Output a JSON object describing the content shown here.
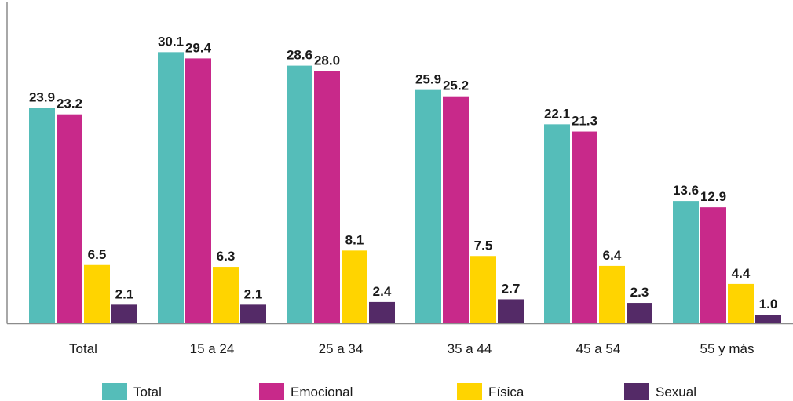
{
  "chart_data": {
    "type": "bar",
    "categories": [
      "Total",
      "15 a 24",
      "25 a 34",
      "35 a 44",
      "45 a 54",
      "55 y más"
    ],
    "series": [
      {
        "name": "Total",
        "color": "#55bdb9",
        "values": [
          23.9,
          30.1,
          28.6,
          25.9,
          22.1,
          13.6
        ]
      },
      {
        "name": "Emocional",
        "color": "#c8298a",
        "values": [
          23.2,
          29.4,
          28.0,
          25.2,
          21.3,
          12.9
        ]
      },
      {
        "name": "Física",
        "color": "#ffd400",
        "values": [
          6.5,
          6.3,
          8.1,
          7.5,
          6.4,
          4.4
        ]
      },
      {
        "name": "Sexual",
        "color": "#542a67",
        "values": [
          2.1,
          2.1,
          2.4,
          2.7,
          2.3,
          1.0
        ]
      }
    ],
    "value_labels": [
      [
        "23.9",
        "30.1",
        "28.6",
        "25.9",
        "22.1",
        "13.6"
      ],
      [
        "23.2",
        "29.4",
        "28.0",
        "25.2",
        "21.3",
        "12.9"
      ],
      [
        "6.5",
        "6.3",
        "8.1",
        "7.5",
        "6.4",
        "4.4"
      ],
      [
        "2.1",
        "2.1",
        "2.4",
        "2.7",
        "2.3",
        "1.0"
      ]
    ],
    "title": "",
    "xlabel": "",
    "ylabel": "",
    "ylim": [
      0,
      32
    ],
    "grid": false,
    "legend_position": "bottom"
  }
}
